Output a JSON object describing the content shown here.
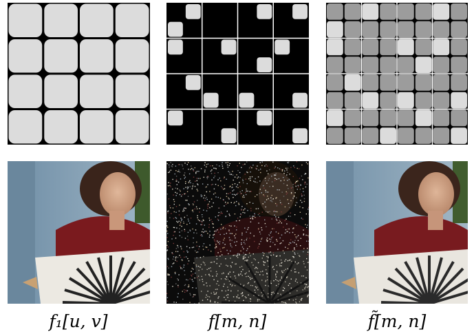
{
  "captions": {
    "left": "f₁[u, v]",
    "middle": "f[m, n]",
    "right": "f̃[m, n]"
  },
  "colors": {
    "light_cell": "#dcdcdc",
    "mid_cell": "#9c9c9c",
    "black": "#000000",
    "grid_line": "#ffffff"
  },
  "grids": {
    "coarse": {
      "rows": 4,
      "cols": 4
    },
    "sparse": {
      "rows": 8,
      "cols": 8,
      "lit": [
        [
          0,
          1
        ],
        [
          0,
          5
        ],
        [
          0,
          7
        ],
        [
          1,
          0
        ],
        [
          2,
          0
        ],
        [
          2,
          3
        ],
        [
          2,
          6
        ],
        [
          3,
          5
        ],
        [
          4,
          1
        ],
        [
          5,
          2
        ],
        [
          5,
          4
        ],
        [
          5,
          7
        ],
        [
          6,
          0
        ],
        [
          6,
          5
        ],
        [
          7,
          3
        ],
        [
          7,
          7
        ]
      ]
    },
    "fine": {
      "rows": 8,
      "cols": 8,
      "light": [
        [
          0,
          2
        ],
        [
          0,
          6
        ],
        [
          1,
          0
        ],
        [
          2,
          0
        ],
        [
          2,
          4
        ],
        [
          2,
          6
        ],
        [
          3,
          5
        ],
        [
          4,
          1
        ],
        [
          5,
          2
        ],
        [
          5,
          4
        ],
        [
          5,
          7
        ],
        [
          6,
          0
        ],
        [
          6,
          5
        ],
        [
          7,
          3
        ],
        [
          7,
          7
        ]
      ]
    }
  }
}
